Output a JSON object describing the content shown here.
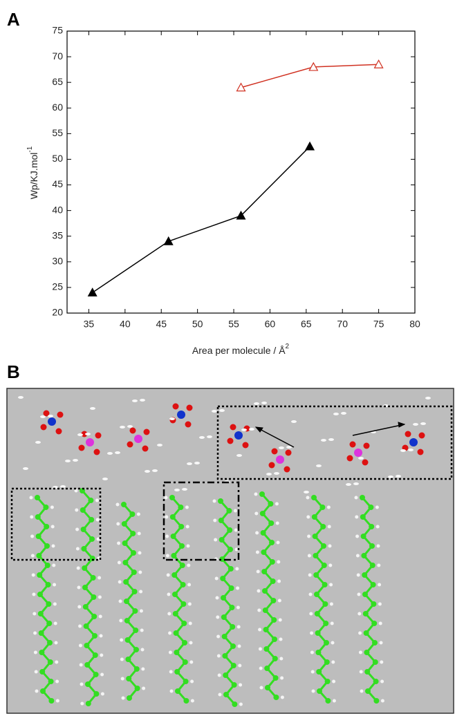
{
  "panel_a_label": "A",
  "panel_b_label": "B",
  "chart_data": {
    "type": "line",
    "x_label": "Area per molecule / Å",
    "x_label_sup": "2",
    "y_label": "Wp/KJ.mol",
    "y_label_sup": "-1",
    "xlim": [
      32,
      80
    ],
    "xticks": [
      35,
      40,
      45,
      50,
      55,
      60,
      65,
      70,
      75,
      80
    ],
    "ylim": [
      20,
      75
    ],
    "yticks": [
      20,
      25,
      30,
      35,
      40,
      45,
      50,
      55,
      60,
      65,
      70,
      75
    ],
    "series": [
      {
        "color": "#000000",
        "marker": "filled-triangle",
        "x": [
          35.5,
          46,
          56,
          65.5
        ],
        "values": [
          24,
          34,
          39,
          52.5
        ]
      },
      {
        "color": "#d03020",
        "marker": "open-triangle",
        "x": [
          56,
          66,
          75
        ],
        "values": [
          64,
          68,
          68.5
        ]
      }
    ]
  }
}
